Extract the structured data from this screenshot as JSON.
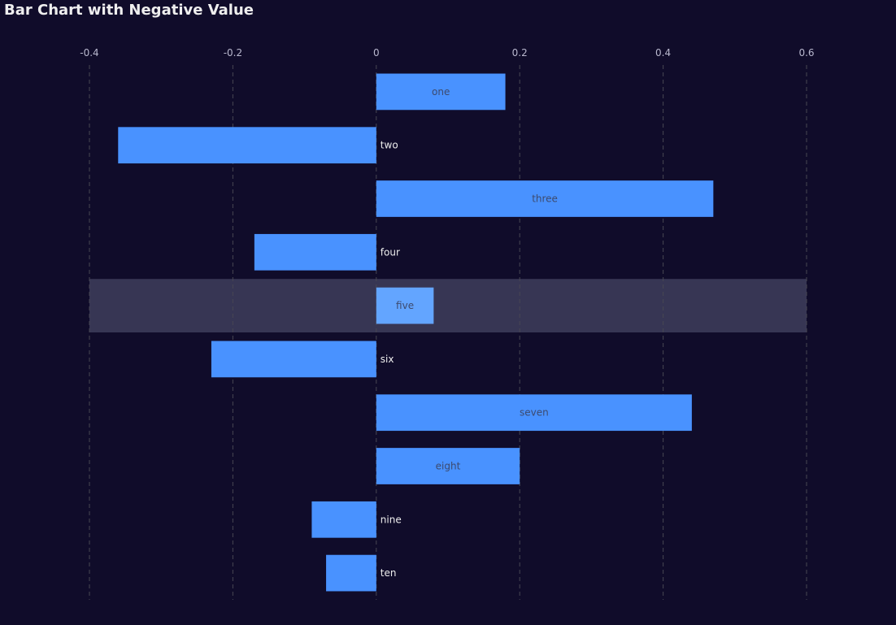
{
  "colors": {
    "background": "#100c2a",
    "bar": "#4992ff",
    "bar_highlight": "#63a5ff",
    "highlight_band": "#373654",
    "grid": "#484753",
    "axis_text": "#b9b8ce",
    "label_inside": "#3d4a6e",
    "label_outside": "#eeeeee",
    "title": "#eeeeee"
  },
  "chart_data": {
    "type": "bar",
    "orientation": "horizontal",
    "title": "Bar Chart with Negative Value",
    "categories": [
      "one",
      "two",
      "three",
      "four",
      "five",
      "six",
      "seven",
      "eight",
      "nine",
      "ten"
    ],
    "values": [
      0.18,
      -0.36,
      0.47,
      -0.17,
      0.08,
      -0.23,
      0.44,
      0.2,
      -0.09,
      -0.07
    ],
    "xlim": [
      -0.4,
      0.6
    ],
    "xticks": [
      -0.4,
      -0.2,
      0,
      0.2,
      0.4,
      0.6
    ],
    "xtick_labels": [
      "-0.4",
      "-0.2",
      "0",
      "0.2",
      "0.4",
      "0.6"
    ],
    "xaxis_position": "top",
    "grid": true,
    "grid_style": "dashed",
    "legend": false,
    "highlighted_category": "five"
  }
}
